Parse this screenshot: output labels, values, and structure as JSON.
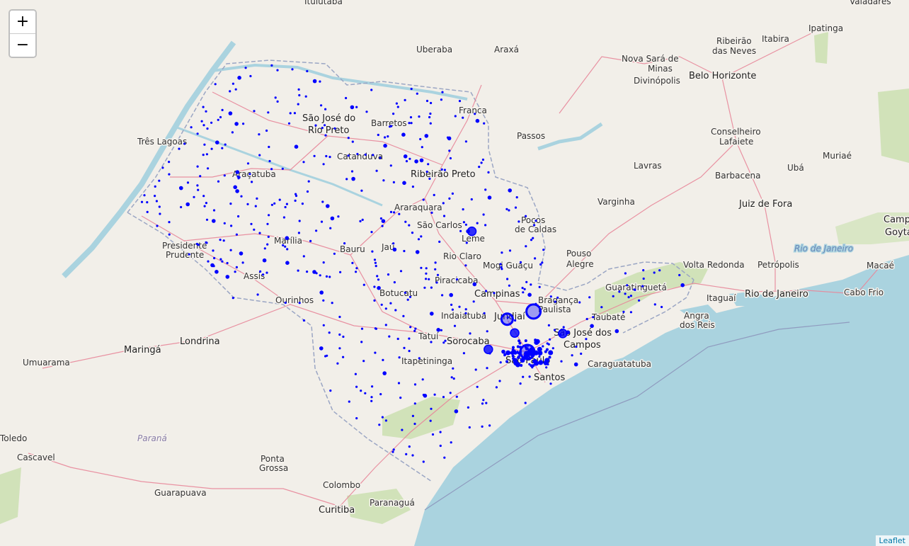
{
  "map": {
    "zoom_in_label": "+",
    "zoom_out_label": "−",
    "attribution": "Leaflet",
    "colors": {
      "land": "#f2efe9",
      "water": "#aad3df",
      "green": "#c8dfad",
      "road": "#e8879a",
      "state_border": "#9ba6c4",
      "marker": "#0000ff"
    },
    "city_labels": [
      "Ituiutaba",
      "Valadares",
      "Uberaba",
      "Araxá",
      "Ipatinga",
      "Ribeirão",
      "das Neves",
      "Itabira",
      "Nova Sará de",
      "Minas",
      "Belo Horizonte",
      "Divinópolis",
      "São José do",
      "Rio Preto",
      "Barretos",
      "Franca",
      "Passos",
      "Conselheiro",
      "Lafaiete",
      "Três Lagoas",
      "Catanduva",
      "Ribeirão Preto",
      "Muriaé",
      "Lavras",
      "Ubá",
      "Barbacena",
      "Araçatuba",
      "Varginha",
      "Juiz de Fora",
      "Araraquara",
      "São Carlos",
      "Poços",
      "de Caldas",
      "Leme",
      "Presidente",
      "Prudente",
      "Marília",
      "Bauru",
      "Jaú",
      "Rio Claro",
      "Pouso",
      "Alegre",
      "Mogi Guaçu",
      "Assis",
      "Piracicaba",
      "Volta Redonda",
      "Petrópolis",
      "Macaé",
      "Guaratinguetá",
      "Campinas",
      "Botucatu",
      "Bragança",
      "Paulista",
      "Ourinhos",
      "Itaguaí",
      "Rio de Janeiro",
      "Cabo Frio",
      "Indaiatuba",
      "Jundiaí",
      "Taubaté",
      "Angra",
      "dos Reis",
      "Tatuí",
      "São José dos",
      "Campos",
      "Maringá",
      "Londrina",
      "Sorocaba",
      "Umuarama",
      "São Paulo",
      "Itapetininga",
      "Caraguatatuba",
      "Santos",
      "Toledo",
      "Cascavel",
      "Ponta",
      "Grossa",
      "Guarapuava",
      "Colombo",
      "Curitiba",
      "Paranaguá",
      "Camp",
      "Goyta"
    ],
    "region_labels": [
      "Rio de Janeiro",
      "Paraná"
    ],
    "markers": [
      {
        "lat": -23.55,
        "lng": -46.63,
        "value": 4
      },
      {
        "lat": -23.18,
        "lng": -46.9,
        "value": 2
      },
      {
        "lat": -22.91,
        "lng": -47.06,
        "value": 3
      },
      {
        "lat": -21.18,
        "lng": -47.81,
        "value": 2
      },
      {
        "lat": -23.5,
        "lng": -47.46,
        "value": 2
      },
      {
        "lat": -22.76,
        "lng": -46.5,
        "value": 4
      },
      {
        "lat": -23.19,
        "lng": -45.88,
        "value": 2
      }
    ]
  }
}
